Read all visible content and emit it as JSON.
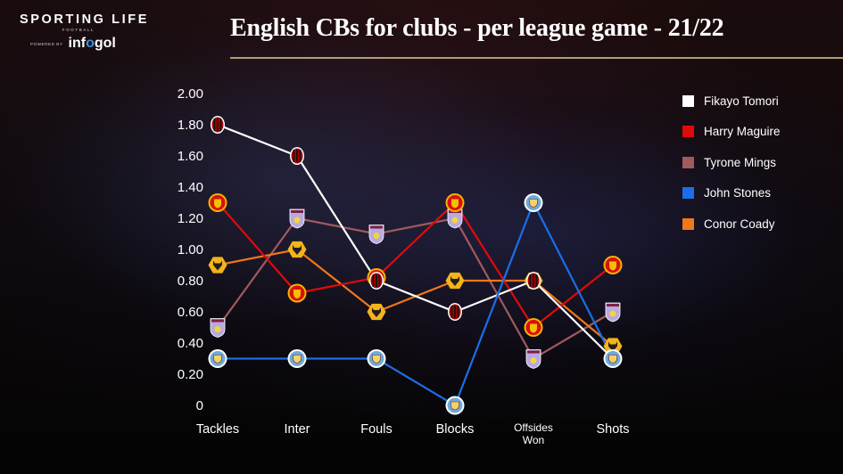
{
  "brand": {
    "name": "SPORTING LIFE",
    "sub": "FOOTBALL",
    "powered_by": "POWERED BY",
    "partner_pre": "inf",
    "partner_o": "o",
    "partner_post": "gol"
  },
  "header": {
    "title": "English CBs for clubs - per league game - 21/22"
  },
  "legend": [
    {
      "label": "Fikayo Tomori",
      "color": "#ffffff"
    },
    {
      "label": "Harry Maguire",
      "color": "#e10a0a"
    },
    {
      "label": "Tyrone Mings",
      "color": "#a05a5e"
    },
    {
      "label": "John Stones",
      "color": "#1a6fe8"
    },
    {
      "label": "Conor Coady",
      "color": "#f07818"
    }
  ],
  "chart_data": {
    "type": "line",
    "title": "English CBs for clubs - per league game - 21/22",
    "xlabel": "",
    "ylabel": "",
    "categories": [
      "Tackles",
      "Inter",
      "Fouls",
      "Blocks",
      "Offsides Won",
      "Shots"
    ],
    "ytick_labels": [
      "2.00",
      "1.80",
      "1.60",
      "1.40",
      "1.20",
      "1.00",
      "0.80",
      "0.60",
      "0.40",
      "0.20",
      "0"
    ],
    "ylim": [
      0,
      2.0
    ],
    "grid": false,
    "legend_position": "right",
    "series": [
      {
        "name": "Fikayo Tomori",
        "club": "AC Milan",
        "color": "#ffffff",
        "values": [
          1.8,
          1.6,
          0.8,
          0.6,
          0.8,
          0.3
        ]
      },
      {
        "name": "Harry Maguire",
        "club": "Manchester United",
        "color": "#e10a0a",
        "values": [
          1.3,
          0.72,
          0.82,
          1.3,
          0.5,
          0.9
        ]
      },
      {
        "name": "Tyrone Mings",
        "club": "Aston Villa",
        "color": "#a05a5e",
        "values": [
          0.5,
          1.2,
          1.1,
          1.2,
          0.3,
          0.6
        ]
      },
      {
        "name": "John Stones",
        "club": "Manchester City",
        "color": "#1a6fe8",
        "values": [
          0.3,
          0.3,
          0.3,
          0.0,
          1.3,
          0.3
        ]
      },
      {
        "name": "Conor Coady",
        "club": "Wolves",
        "color": "#f07818",
        "values": [
          0.9,
          1.0,
          0.6,
          0.8,
          0.8,
          0.38
        ]
      }
    ]
  }
}
